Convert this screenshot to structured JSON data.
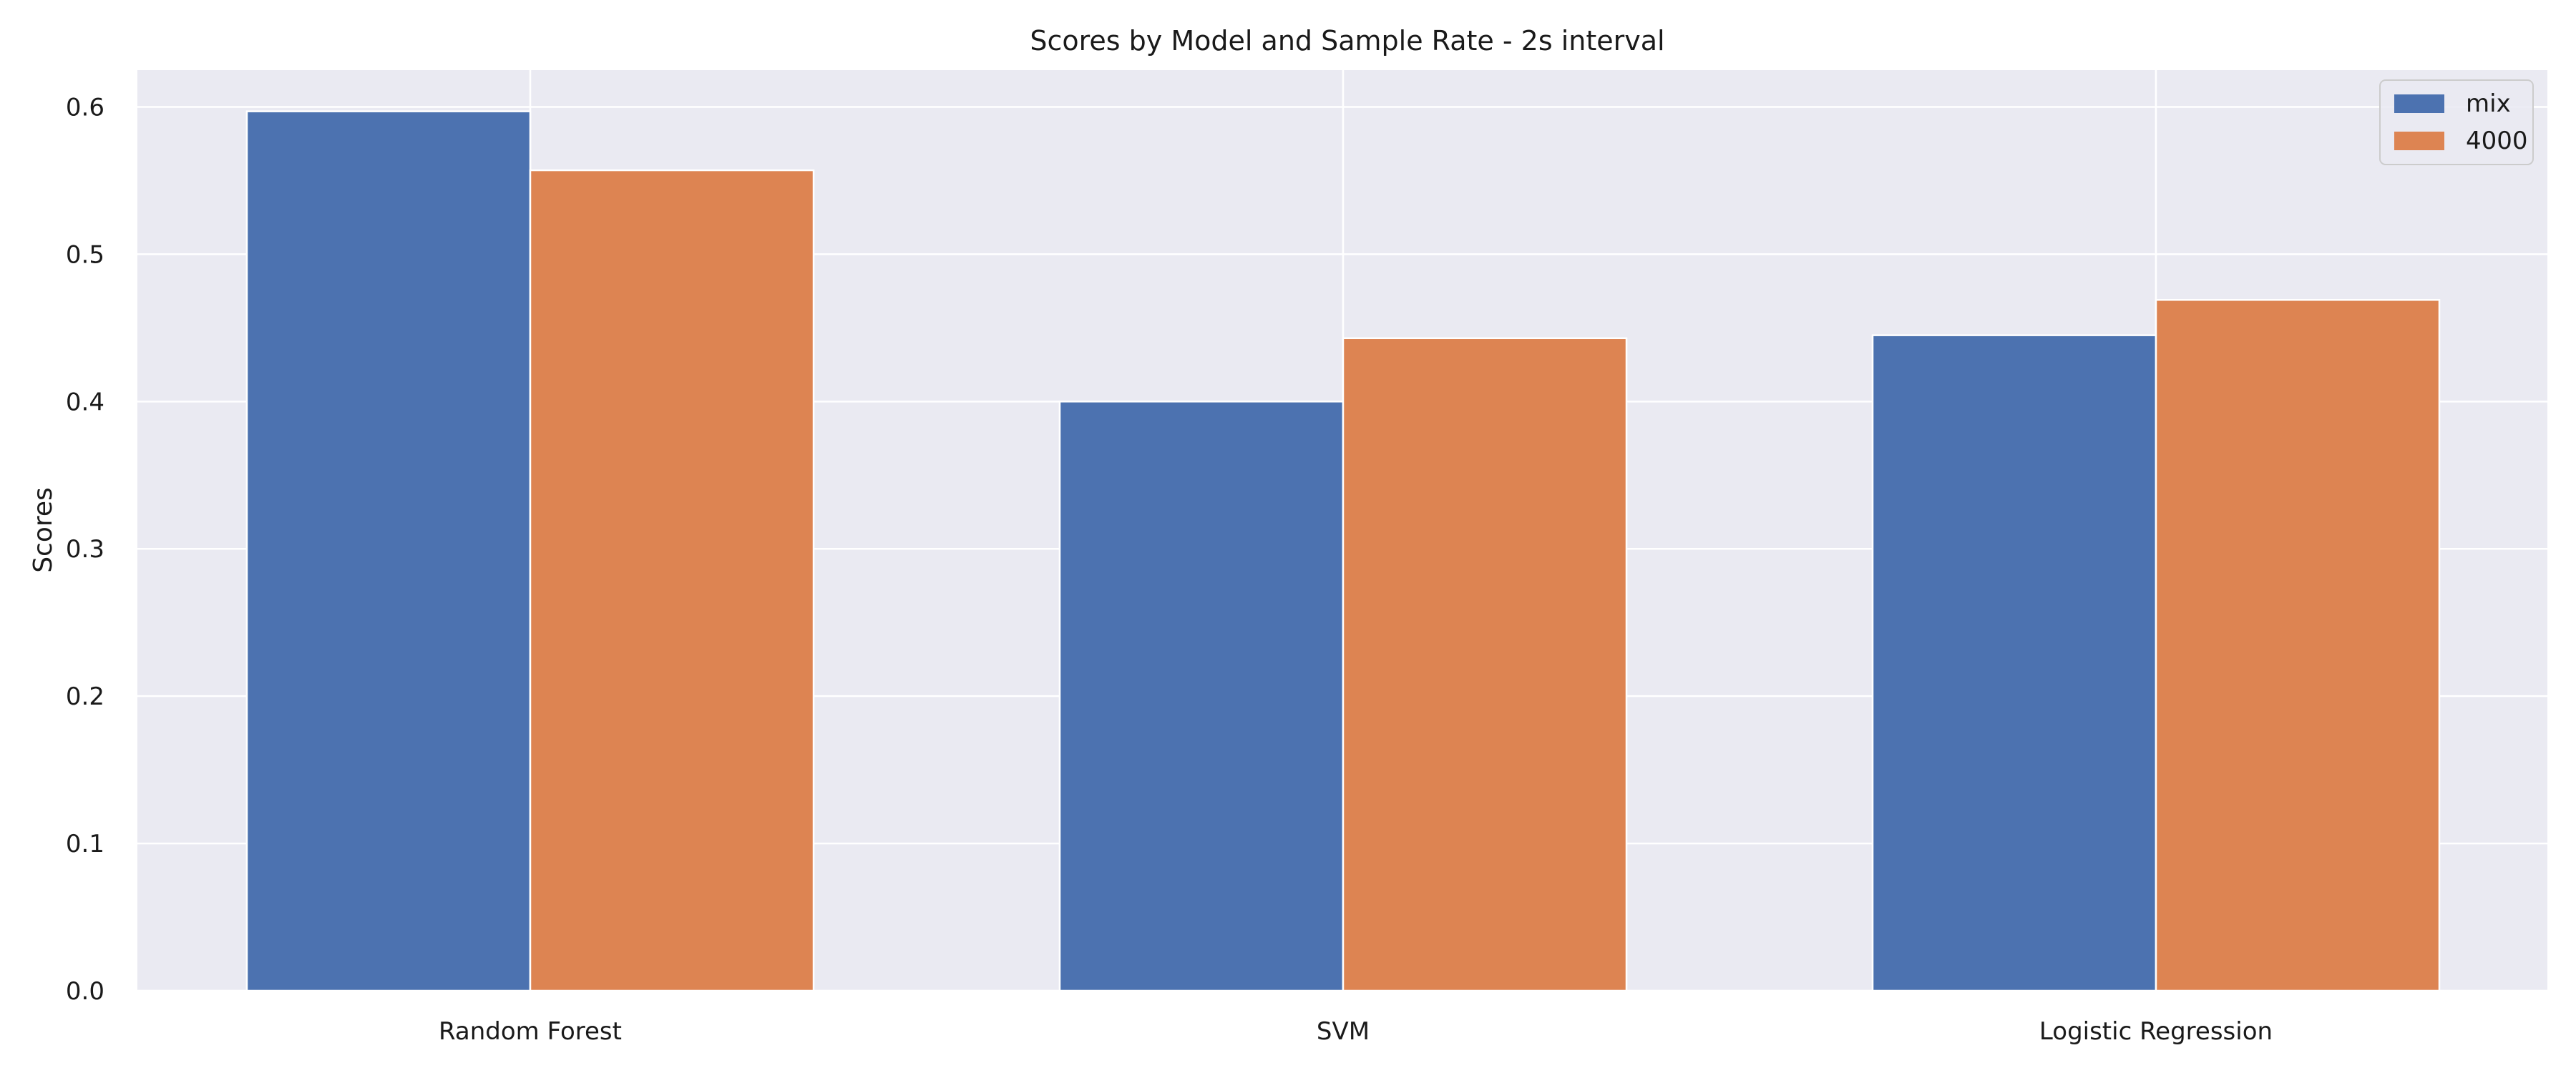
{
  "chart_data": {
    "type": "bar",
    "title": "Scores by Model and Sample Rate - 2s interval",
    "xlabel": "",
    "ylabel": "Scores",
    "categories": [
      "Random Forest",
      "SVM",
      "Logistic Regression"
    ],
    "series": [
      {
        "name": "mix",
        "values": [
          0.597,
          0.4,
          0.445
        ],
        "color": "#4c72b0"
      },
      {
        "name": "4000",
        "values": [
          0.557,
          0.443,
          0.469
        ],
        "color": "#dd8452"
      }
    ],
    "ylim": [
      0,
      0.625
    ],
    "yticks": [
      "0.0",
      "0.1",
      "0.2",
      "0.3",
      "0.4",
      "0.5",
      "0.6"
    ],
    "grid": true,
    "legend_position": "top-right",
    "background_color": "#eaeaf2",
    "grid_color": "#ffffff"
  }
}
